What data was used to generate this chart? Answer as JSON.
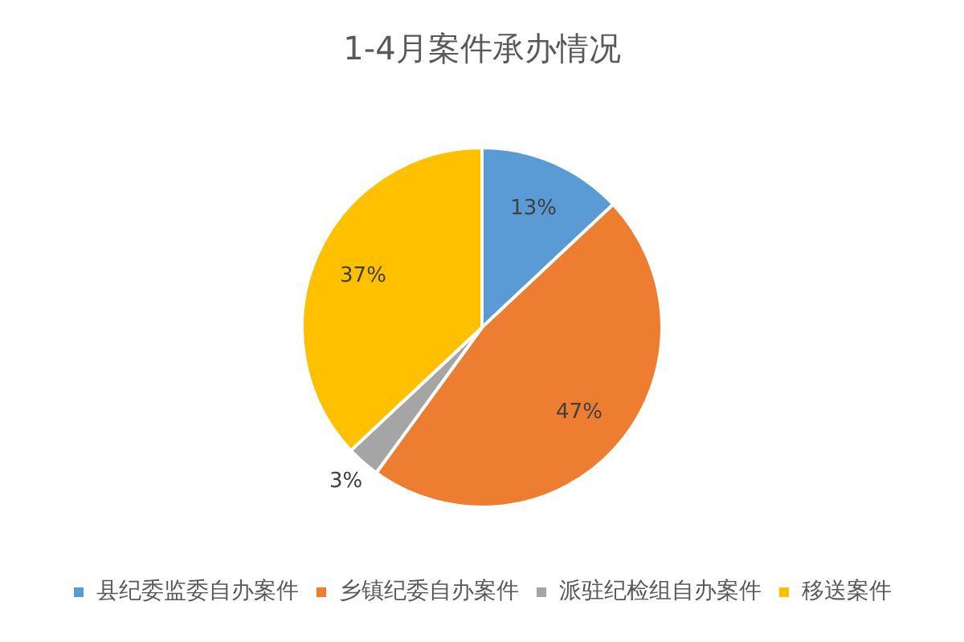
{
  "chart_data": {
    "type": "pie",
    "title": "1-4月案件承办情况",
    "categories": [
      "县纪委监委自办案件",
      "乡镇纪委自办案件",
      "派驻纪检组自办案件",
      "移送案件"
    ],
    "values": [
      13,
      47,
      3,
      37
    ],
    "colors": [
      "#5b9bd5",
      "#ed7d31",
      "#a5a5a5",
      "#ffc000"
    ],
    "value_labels": [
      "13%",
      "47%",
      "3%",
      "37%"
    ],
    "legend": "bottom"
  }
}
